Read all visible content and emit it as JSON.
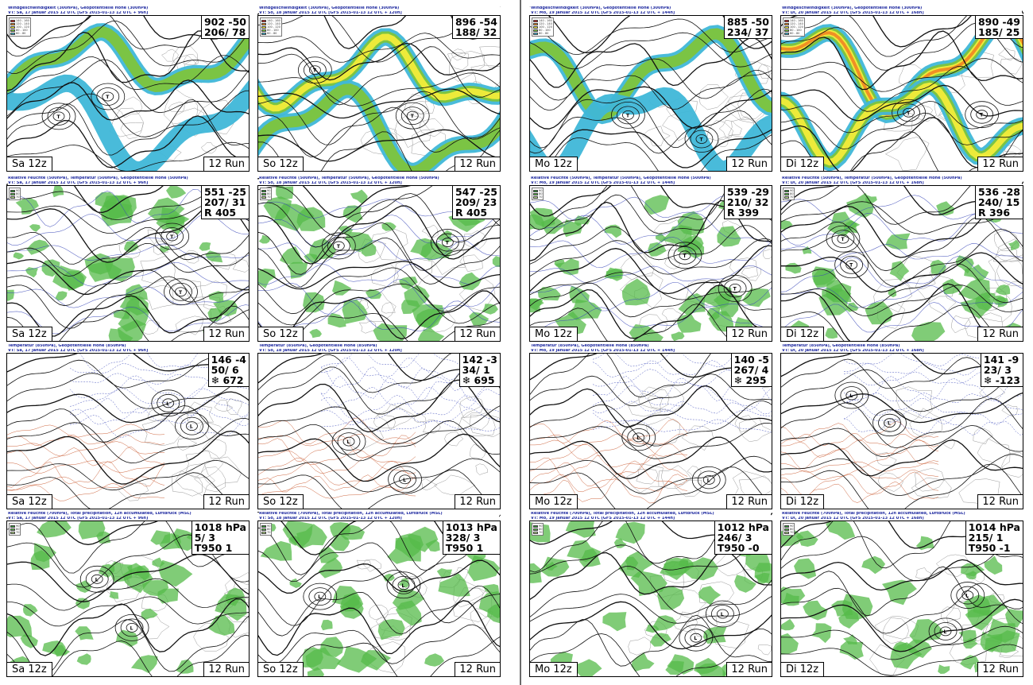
{
  "columns": [
    {
      "day": "Sa 12z",
      "vt_300": "VT: Sa, 17 januar 2015 12 UTC [GFS 2015-01-13 12 UTC + 96h]",
      "vt_500": "VT: Sa, 17 januar 2015 12 UTC [GFS 2015-01-13 12 UTC + 96h]",
      "vt_850": "VT: Sa, 17 januar 2015 12 UTC [GFS 2015-01-13 12 UTC + 96h]",
      "vt_mslp": "VT: Sa, 17 januar 2015 12 UTC [GFS 2015-01-13 12 UTC + 96h]",
      "stats": {
        "p300": [
          "902 -50",
          "206/ 78"
        ],
        "p500": [
          "551 -25",
          "207/ 31",
          "R 405"
        ],
        "p850": [
          "146 -4",
          "50/ 6",
          "❄ 672"
        ],
        "mslp": [
          "1018 hPa",
          "5/ 3",
          "T950 1"
        ]
      }
    },
    {
      "day": "So 12z",
      "vt_300": "VT: So, 18 januar 2015 12 UTC [GFS 2015-01-13 12 UTC + 120h]",
      "vt_500": "VT: So, 18 januar 2015 12 UTC [GFS 2015-01-13 12 UTC + 120h]",
      "vt_850": "VT: So, 18 januar 2015 12 UTC [GFS 2015-01-13 12 UTC + 120h]",
      "vt_mslp": "VT: So, 18 januar 2015 12 UTC [GFS 2015-01-13 12 UTC + 120h]",
      "stats": {
        "p300": [
          "896 -54",
          "188/ 32"
        ],
        "p500": [
          "547 -25",
          "209/ 23",
          "R 405"
        ],
        "p850": [
          "142 -3",
          "34/ 1",
          "❄ 695"
        ],
        "mslp": [
          "1013 hPa",
          "328/ 3",
          "T950 1"
        ]
      }
    },
    {
      "day": "Mo 12z",
      "vt_300": "VT: Mo, 19 januar 2015 12 UTC [GFS 2015-01-13 12 UTC + 144h]",
      "vt_500": "VT: Mo, 19 januar 2015 12 UTC [GFS 2015-01-13 12 UTC + 144h]",
      "vt_850": "VT: Mo, 19 januar 2015 12 UTC [GFS 2015-01-13 12 UTC + 144h]",
      "vt_mslp": "VT: Mo, 19 januar 2015 12 UTC [GFS 2015-01-13 12 UTC + 144h]",
      "stats": {
        "p300": [
          "885 -50",
          "234/ 37"
        ],
        "p500": [
          "539 -29",
          "210/ 32",
          "R 399"
        ],
        "p850": [
          "140 -5",
          "267/ 4",
          "❄ 295"
        ],
        "mslp": [
          "1012 hPa",
          "246/ 3",
          "T950 -0"
        ]
      }
    },
    {
      "day": "Di 12z",
      "vt_300": "VT: Di, 20 januar 2015 12 UTC [GFS 2015-01-13 12 UTC + 168h]",
      "vt_500": "VT: Di, 20 januar 2015 12 UTC [GFS 2015-01-13 12 UTC + 168h]",
      "vt_850": "VT: Di, 20 januar 2015 12 UTC [GFS 2015-01-13 12 UTC + 168h]",
      "vt_mslp": "VT: Di, 20 januar 2015 12 UTC [GFS 2015-01-13 12 UTC + 168h]",
      "stats": {
        "p300": [
          "890 -49",
          "185/ 25"
        ],
        "p500": [
          "536 -28",
          "240/ 15",
          "R 396"
        ],
        "p850": [
          "141 -9",
          "23/ 3",
          "❄ -123"
        ],
        "mslp": [
          "1014 hPa",
          "215/ 1",
          "T950 -1"
        ]
      }
    }
  ],
  "rows": [
    {
      "key": "p300",
      "title": "Windgeschwindigkeit (300hPa), Geopotentielle Höhe (300hPa)"
    },
    {
      "key": "p500",
      "title": "Relative Feuchte (500hPa), Temperatur (500hPa), Geopotentielle Höhe (500hPa)"
    },
    {
      "key": "p850",
      "title": "Temperatur (850hPa), Geopotentielle Höhe (850hPa)"
    },
    {
      "key": "mslp",
      "title": "Relative Feuchte (700hPa), Total precipitation, 12h accumulated, Luftdruck (MSL)"
    }
  ],
  "run_label": "12 Run",
  "wind_legend": [
    "140 - 160",
    "120 - 140",
    "100 - 120",
    "80 - 100",
    "60 - 80"
  ],
  "rh_legend": [
    "90",
    "80",
    "70"
  ],
  "colors": {
    "wind_60_80": "#3fb7d8",
    "wind_80_100": "#7ec43c",
    "wind_100_120": "#f3ec3a",
    "wind_120_140": "#f08a24",
    "wind_140_160": "#d8231e",
    "rh_green": "#55bb4a",
    "temp_cold": "#3a47b8",
    "temp_warm": "#c8552a",
    "title_blue": "#1f2aa0"
  }
}
